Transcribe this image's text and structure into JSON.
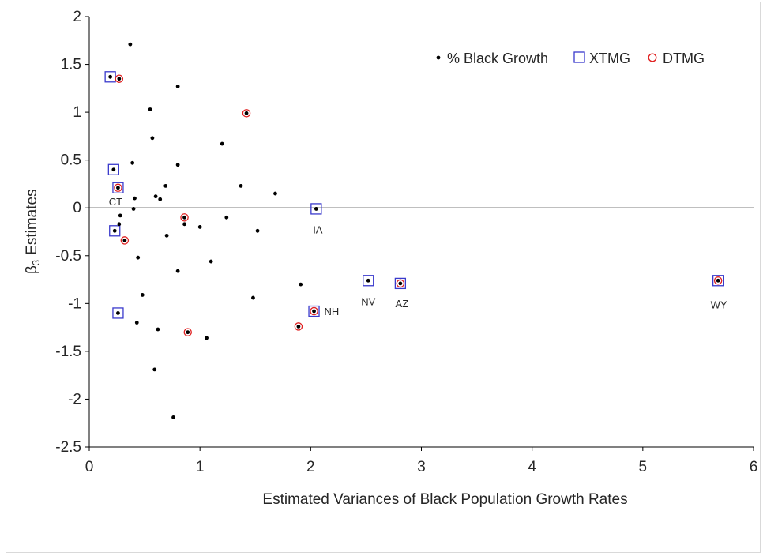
{
  "chart_data": {
    "type": "scatter",
    "xlabel": "Estimated Variances of Black Population Growth Rates",
    "ylabel_main": "β",
    "ylabel_sub": "3",
    "ylabel_rest": "Estimates",
    "xlim": [
      0,
      6
    ],
    "ylim": [
      -2.5,
      2
    ],
    "x_ticks": [
      0,
      1,
      2,
      3,
      4,
      5,
      6
    ],
    "y_ticks": [
      2,
      1.5,
      1,
      0.5,
      0,
      -0.5,
      -1,
      -1.5,
      -2,
      -2.5
    ],
    "x_tick_labels": [
      "0",
      "1",
      "2",
      "3",
      "4",
      "5",
      "6"
    ],
    "y_tick_labels": [
      "2",
      "1.5",
      "1",
      "0.5",
      "0",
      "-0.5",
      "-1",
      "-1.5",
      "-2",
      "-2.5"
    ],
    "grid": false,
    "zero_line": true,
    "legend_position": "top-right",
    "legend": [
      {
        "label": "% Black Growth",
        "marker": "dot"
      },
      {
        "label": "XTMG",
        "marker": "square"
      },
      {
        "label": "DTMG",
        "marker": "circle"
      }
    ],
    "colors": {
      "dot": "#000000",
      "square": "#3a3acc",
      "circle": "#e02020"
    },
    "series": [
      {
        "name": "% Black Growth",
        "marker": "dot",
        "points": [
          [
            0.37,
            1.71
          ],
          [
            0.19,
            1.37
          ],
          [
            0.27,
            1.35
          ],
          [
            0.8,
            1.27
          ],
          [
            0.55,
            1.03
          ],
          [
            1.42,
            0.99
          ],
          [
            0.57,
            0.73
          ],
          [
            1.2,
            0.67
          ],
          [
            0.39,
            0.47
          ],
          [
            0.8,
            0.45
          ],
          [
            0.22,
            0.4
          ],
          [
            1.37,
            0.23
          ],
          [
            0.69,
            0.23
          ],
          [
            0.26,
            0.21
          ],
          [
            1.68,
            0.15
          ],
          [
            0.6,
            0.12
          ],
          [
            0.41,
            0.1
          ],
          [
            0.64,
            0.09
          ],
          [
            0.4,
            -0.01
          ],
          [
            2.05,
            -0.01
          ],
          [
            0.28,
            -0.08
          ],
          [
            1.24,
            -0.1
          ],
          [
            0.86,
            -0.1
          ],
          [
            0.27,
            -0.17
          ],
          [
            0.86,
            -0.17
          ],
          [
            1.0,
            -0.2
          ],
          [
            0.23,
            -0.24
          ],
          [
            1.52,
            -0.24
          ],
          [
            0.7,
            -0.29
          ],
          [
            0.32,
            -0.34
          ],
          [
            0.44,
            -0.52
          ],
          [
            1.1,
            -0.56
          ],
          [
            0.8,
            -0.66
          ],
          [
            2.52,
            -0.76
          ],
          [
            5.68,
            -0.76
          ],
          [
            2.81,
            -0.79
          ],
          [
            1.91,
            -0.8
          ],
          [
            0.48,
            -0.91
          ],
          [
            1.48,
            -0.94
          ],
          [
            2.03,
            -1.08
          ],
          [
            0.26,
            -1.1
          ],
          [
            0.43,
            -1.2
          ],
          [
            1.89,
            -1.24
          ],
          [
            0.62,
            -1.27
          ],
          [
            0.89,
            -1.3
          ],
          [
            1.06,
            -1.36
          ],
          [
            0.59,
            -1.69
          ],
          [
            0.76,
            -2.19
          ]
        ]
      },
      {
        "name": "XTMG",
        "marker": "square",
        "points": [
          [
            0.19,
            1.37
          ],
          [
            0.22,
            0.4
          ],
          [
            0.26,
            0.21
          ],
          [
            0.23,
            -0.24
          ],
          [
            0.26,
            -1.1
          ],
          [
            2.05,
            -0.01
          ],
          [
            2.52,
            -0.76
          ],
          [
            2.81,
            -0.79
          ],
          [
            2.03,
            -1.08
          ],
          [
            5.68,
            -0.76
          ]
        ]
      },
      {
        "name": "DTMG",
        "marker": "circle",
        "points": [
          [
            0.27,
            1.35
          ],
          [
            1.42,
            0.99
          ],
          [
            0.26,
            0.21
          ],
          [
            0.86,
            -0.1
          ],
          [
            0.32,
            -0.34
          ],
          [
            2.81,
            -0.79
          ],
          [
            2.03,
            -1.08
          ],
          [
            1.89,
            -1.24
          ],
          [
            0.89,
            -1.3
          ],
          [
            5.68,
            -0.76
          ]
        ]
      }
    ],
    "annotations": [
      {
        "text": "CT",
        "x": 0.26,
        "y": 0.21
      },
      {
        "text": "IA",
        "x": 2.05,
        "y": -0.01
      },
      {
        "text": "NV",
        "x": 2.52,
        "y": -0.76
      },
      {
        "text": "AZ",
        "x": 2.81,
        "y": -0.79
      },
      {
        "text": "NH",
        "x": 2.03,
        "y": -1.08
      },
      {
        "text": "WY",
        "x": 5.68,
        "y": -0.76
      }
    ]
  }
}
